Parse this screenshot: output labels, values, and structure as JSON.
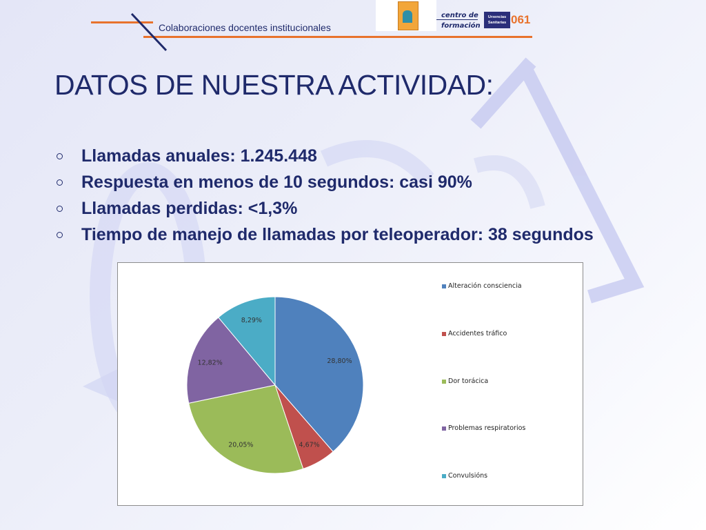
{
  "header": {
    "subtitle": "Colaboraciones docentes institucionales",
    "formacion_line1": "centro de",
    "formacion_line2": "formación",
    "urx_line1": "Urxencias",
    "urx_line2": "Sanitarias",
    "urx_number": "061"
  },
  "title": "DATOS DE NUESTRA ACTIVIDAD:",
  "bullets": [
    "Llamadas anuales: 1.245.448",
    "Respuesta en menos de 10 segundos: casi 90%",
    "Llamadas perdidas: <1,3%",
    "Tiempo de manejo de llamadas por teleoperador: 38 segundos"
  ],
  "colors": {
    "text_navy": "#1f2a6b",
    "accent_orange": "#e8722c"
  },
  "chart_data": {
    "type": "pie",
    "categories": [
      "Alteración consciencia",
      "Accidentes tráfico",
      "Dor torácica",
      "Problemas respiratorios",
      "Convulsións"
    ],
    "values": [
      28.8,
      4.67,
      20.05,
      12.82,
      8.29
    ],
    "data_labels": [
      "28,80%",
      "4,67%",
      "20,05%",
      "12,82%",
      "8,29%"
    ],
    "colors": [
      "#4f81bd",
      "#c0504d",
      "#9bbb59",
      "#8064a2",
      "#4bacc6"
    ],
    "start_angle": "12 o'clock",
    "direction": "clockwise",
    "legend_position": "right"
  }
}
